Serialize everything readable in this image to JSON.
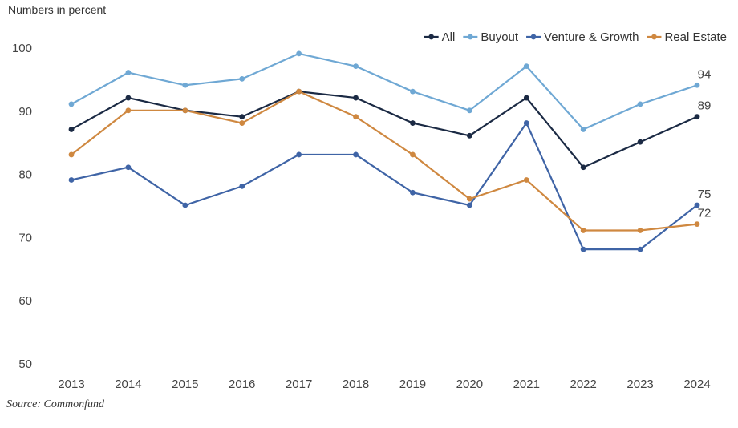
{
  "chart_data": {
    "type": "line",
    "ylabel": "Numbers in percent",
    "source": "Source: Commonfund",
    "x": [
      "2013",
      "2014",
      "2015",
      "2016",
      "2017",
      "2018",
      "2019",
      "2020",
      "2021",
      "2022",
      "2023",
      "2024"
    ],
    "ylim": [
      50,
      100
    ],
    "yticks": [
      50,
      60,
      70,
      80,
      90,
      100
    ],
    "grid": false,
    "legend_position": "top-right",
    "series": [
      {
        "name": "All",
        "color": "#1b2a44",
        "values": [
          87,
          92,
          90,
          89,
          93,
          92,
          88,
          86,
          92,
          81,
          85,
          89
        ]
      },
      {
        "name": "Buyout",
        "color": "#6fa8d4",
        "values": [
          91,
          96,
          94,
          95,
          99,
          97,
          93,
          90,
          97,
          87,
          91,
          94
        ]
      },
      {
        "name": "Venture & Growth",
        "color": "#3f64a6",
        "values": [
          79,
          81,
          75,
          78,
          83,
          83,
          77,
          75,
          88,
          68,
          68,
          75
        ]
      },
      {
        "name": "Real Estate",
        "color": "#cf8840",
        "values": [
          83,
          90,
          90,
          88,
          93,
          89,
          83,
          76,
          79,
          71,
          71,
          72
        ]
      }
    ],
    "end_labels": [
      {
        "series": "Buyout",
        "text": "94"
      },
      {
        "series": "All",
        "text": "89"
      },
      {
        "series": "Venture & Growth",
        "text": "75"
      },
      {
        "series": "Real Estate",
        "text": "72"
      }
    ]
  }
}
